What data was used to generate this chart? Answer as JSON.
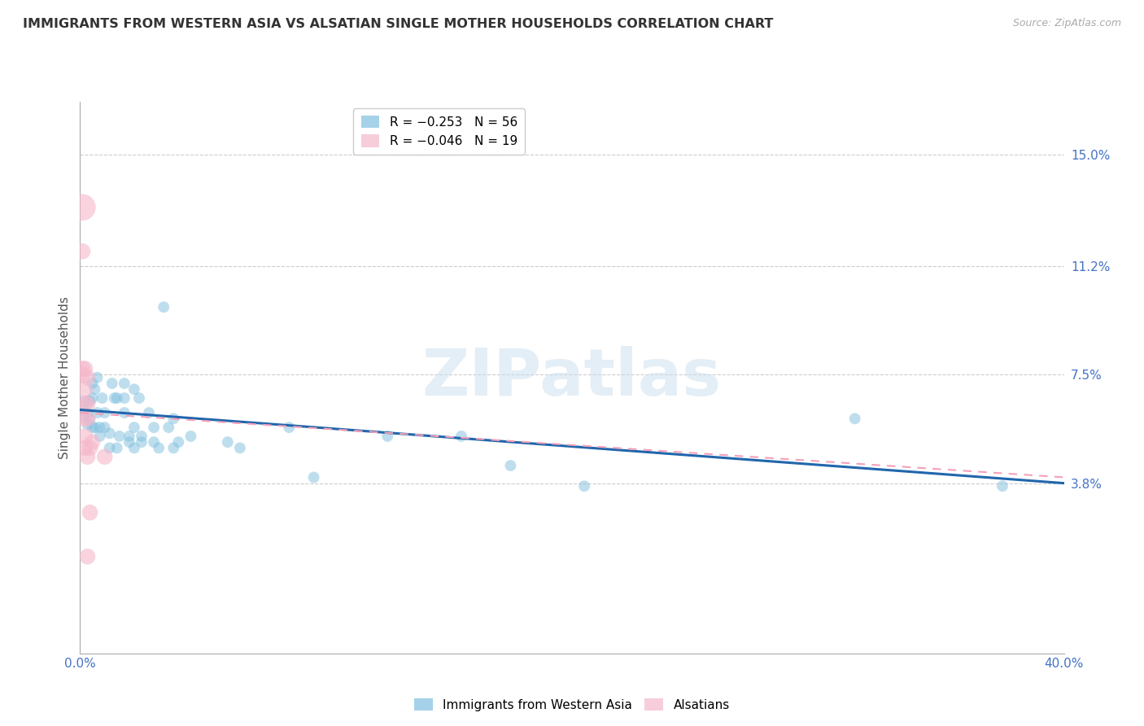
{
  "title": "IMMIGRANTS FROM WESTERN ASIA VS ALSATIAN SINGLE MOTHER HOUSEHOLDS CORRELATION CHART",
  "source": "Source: ZipAtlas.com",
  "ylabel": "Single Mother Households",
  "ytick_labels": [
    "15.0%",
    "11.2%",
    "7.5%",
    "3.8%"
  ],
  "ytick_values": [
    0.15,
    0.112,
    0.075,
    0.038
  ],
  "xlim": [
    0.0,
    0.4
  ],
  "ylim": [
    -0.02,
    0.168
  ],
  "legend_r1": "R = −0.253",
  "legend_n1": "N = 56",
  "legend_r2": "R = −0.046",
  "legend_n2": "N = 19",
  "blue_color": "#7fbfdf",
  "pink_color": "#f5b8cb",
  "blue_line_color": "#2166ac",
  "pink_line_color": "#f4a0b8",
  "title_color": "#333333",
  "axis_label_color": "#4472c4",
  "watermark": "ZIPatlas",
  "blue_scatter": [
    [
      0.001,
      0.062
    ],
    [
      0.002,
      0.066
    ],
    [
      0.003,
      0.062
    ],
    [
      0.003,
      0.058
    ],
    [
      0.004,
      0.066
    ],
    [
      0.004,
      0.06
    ],
    [
      0.005,
      0.072
    ],
    [
      0.005,
      0.067
    ],
    [
      0.005,
      0.057
    ],
    [
      0.006,
      0.07
    ],
    [
      0.006,
      0.057
    ],
    [
      0.007,
      0.074
    ],
    [
      0.007,
      0.062
    ],
    [
      0.008,
      0.057
    ],
    [
      0.008,
      0.054
    ],
    [
      0.009,
      0.067
    ],
    [
      0.01,
      0.057
    ],
    [
      0.01,
      0.062
    ],
    [
      0.012,
      0.055
    ],
    [
      0.012,
      0.05
    ],
    [
      0.013,
      0.072
    ],
    [
      0.014,
      0.067
    ],
    [
      0.015,
      0.067
    ],
    [
      0.015,
      0.05
    ],
    [
      0.016,
      0.054
    ],
    [
      0.018,
      0.067
    ],
    [
      0.018,
      0.072
    ],
    [
      0.018,
      0.062
    ],
    [
      0.02,
      0.054
    ],
    [
      0.02,
      0.052
    ],
    [
      0.022,
      0.07
    ],
    [
      0.022,
      0.057
    ],
    [
      0.022,
      0.05
    ],
    [
      0.024,
      0.067
    ],
    [
      0.025,
      0.054
    ],
    [
      0.025,
      0.052
    ],
    [
      0.028,
      0.062
    ],
    [
      0.03,
      0.057
    ],
    [
      0.03,
      0.052
    ],
    [
      0.032,
      0.05
    ],
    [
      0.034,
      0.098
    ],
    [
      0.036,
      0.057
    ],
    [
      0.038,
      0.06
    ],
    [
      0.038,
      0.05
    ],
    [
      0.04,
      0.052
    ],
    [
      0.045,
      0.054
    ],
    [
      0.06,
      0.052
    ],
    [
      0.065,
      0.05
    ],
    [
      0.085,
      0.057
    ],
    [
      0.095,
      0.04
    ],
    [
      0.125,
      0.054
    ],
    [
      0.155,
      0.054
    ],
    [
      0.175,
      0.044
    ],
    [
      0.205,
      0.037
    ],
    [
      0.315,
      0.06
    ],
    [
      0.375,
      0.037
    ]
  ],
  "pink_scatter": [
    [
      0.001,
      0.132
    ],
    [
      0.001,
      0.117
    ],
    [
      0.001,
      0.077
    ],
    [
      0.001,
      0.075
    ],
    [
      0.002,
      0.077
    ],
    [
      0.002,
      0.07
    ],
    [
      0.002,
      0.065
    ],
    [
      0.002,
      0.06
    ],
    [
      0.002,
      0.054
    ],
    [
      0.002,
      0.05
    ],
    [
      0.003,
      0.074
    ],
    [
      0.003,
      0.065
    ],
    [
      0.003,
      0.06
    ],
    [
      0.003,
      0.047
    ],
    [
      0.003,
      0.013
    ],
    [
      0.004,
      0.05
    ],
    [
      0.004,
      0.028
    ],
    [
      0.005,
      0.052
    ],
    [
      0.01,
      0.047
    ]
  ],
  "blue_sizes": [
    220,
    100,
    100,
    100,
    100,
    100,
    100,
    100,
    100,
    100,
    100,
    100,
    100,
    100,
    100,
    100,
    100,
    100,
    100,
    100,
    100,
    100,
    100,
    100,
    100,
    100,
    100,
    100,
    100,
    100,
    100,
    100,
    100,
    100,
    100,
    100,
    100,
    100,
    100,
    100,
    100,
    100,
    100,
    100,
    100,
    100,
    100,
    100,
    100,
    100,
    100,
    100,
    100,
    100,
    100,
    100
  ],
  "pink_sizes": [
    550,
    200,
    200,
    200,
    200,
    200,
    200,
    200,
    200,
    200,
    200,
    200,
    200,
    200,
    200,
    200,
    200,
    200,
    200
  ],
  "blue_trend_y_start": 0.063,
  "blue_trend_y_end": 0.038,
  "pink_trend_y_start": 0.062,
  "pink_trend_y_end": 0.04
}
